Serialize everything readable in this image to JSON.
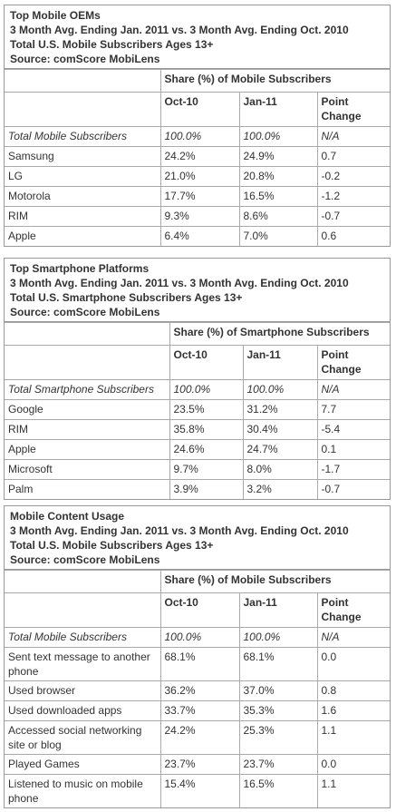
{
  "tables": [
    {
      "title": "Top Mobile OEMs",
      "subtitle_lines": [
        "3 Month Avg. Ending Jan. 2011 vs. 3 Month Avg. Ending Oct. 2010",
        "Total U.S. Mobile Subscribers Ages 13+",
        "Source: comScore MobiLens"
      ],
      "share_header": "Share (%) of Mobile Subscribers",
      "columns": [
        "Oct-10",
        "Jan-11",
        "Point Change"
      ],
      "rows": [
        [
          "Total Mobile Subscribers",
          "100.0%",
          "100.0%",
          "N/A"
        ],
        [
          "Samsung",
          "24.2%",
          "24.9%",
          "0.7"
        ],
        [
          "LG",
          "21.0%",
          "20.8%",
          "-0.2"
        ],
        [
          "Motorola",
          "17.7%",
          "16.5%",
          "-1.2"
        ],
        [
          "RIM",
          "9.3%",
          "8.6%",
          "-0.7"
        ],
        [
          "Apple",
          "6.4%",
          "7.0%",
          "0.6"
        ]
      ]
    },
    {
      "title": "Top Smartphone Platforms",
      "subtitle_lines": [
        "3 Month Avg. Ending Jan. 2011 vs. 3 Month Avg. Ending Oct. 2010",
        "Total U.S. Smartphone Subscribers Ages 13+",
        "Source: comScore MobiLens"
      ],
      "share_header": "Share (%) of Smartphone Subscribers",
      "columns": [
        "Oct-10",
        "Jan-11",
        "Point Change"
      ],
      "rows": [
        [
          "Total Smartphone Subscribers",
          "100.0%",
          "100.0%",
          "N/A"
        ],
        [
          "Google",
          "23.5%",
          "31.2%",
          "7.7"
        ],
        [
          "RIM",
          "35.8%",
          "30.4%",
          "-5.4"
        ],
        [
          "Apple",
          "24.6%",
          "24.7%",
          "0.1"
        ],
        [
          "Microsoft",
          "9.7%",
          "8.0%",
          "-1.7"
        ],
        [
          "Palm",
          "3.9%",
          "3.2%",
          "-0.7"
        ]
      ]
    },
    {
      "title": "Mobile Content Usage",
      "subtitle_lines": [
        "3 Month Avg. Ending Jan. 2011 vs. 3 Month Avg. Ending Oct. 2010",
        "Total U.S. Mobile Subscribers Ages 13+",
        "Source: comScore MobiLens"
      ],
      "share_header": "Share (%) of Mobile Subscribers",
      "columns": [
        "Oct-10",
        "Jan-11",
        "Point Change"
      ],
      "rows": [
        [
          "Total Mobile Subscribers",
          "100.0%",
          "100.0%",
          "N/A"
        ],
        [
          "Sent text message to another phone",
          "68.1%",
          "68.1%",
          "0.0"
        ],
        [
          "Used browser",
          "36.2%",
          "37.0%",
          "0.8"
        ],
        [
          "Used downloaded apps",
          "33.7%",
          "35.3%",
          "1.6"
        ],
        [
          "Accessed social networking site or blog",
          "24.2%",
          "25.3%",
          "1.1"
        ],
        [
          "Played Games",
          "23.7%",
          "23.7%",
          "0.0"
        ],
        [
          "Listened to music on mobile phone",
          "15.4%",
          "16.5%",
          "1.1"
        ]
      ]
    }
  ]
}
